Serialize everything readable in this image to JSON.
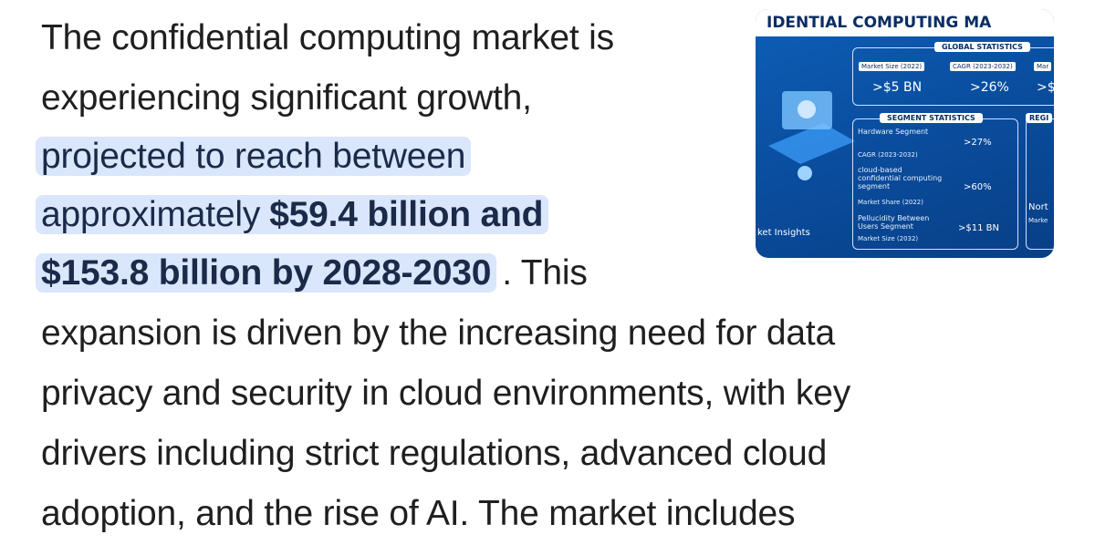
{
  "text": {
    "lines": [
      "The confidential computing market is",
      "experiencing significant growth,"
    ],
    "highlight_line": "projected to reach between",
    "highlight_plain": "approximately",
    "highlight_bold_1": "$59.4 billion and",
    "highlight_bold_2": "$153.8 billion by 2028-2030",
    "after_highlight": ". This",
    "rest": [
      "expansion is driven by the increasing need for data",
      "privacy and security in cloud environments, with key",
      "drivers including strict regulations, advanced cloud",
      "adoption, and the rise of AI. The market includes"
    ]
  },
  "image": {
    "title": "IDENTIAL COMPUTING MA",
    "global_heading": "GLOBAL STATISTICS",
    "global_stats": [
      {
        "label": "Market Size (2022)",
        "value": ">$5 BN"
      },
      {
        "label": "CAGR (2023-2032)",
        "value": ">26%"
      },
      {
        "label": "Mar",
        "value": ">$"
      }
    ],
    "segment_heading": "SEGMENT STATISTICS",
    "segments": [
      {
        "name": "Hardware Segment",
        "metric": "CAGR (2023-2032)",
        "value": ">27%"
      },
      {
        "name": "cloud-based confidential computing segment",
        "metric": "Market Share (2022)",
        "value": ">60%"
      },
      {
        "name": "Pellucidity Between Users Segment",
        "metric": "Market Size (2032)",
        "value": ">$11 BN"
      }
    ],
    "region_heading": "REGI",
    "region_name": "Nort",
    "region_sub": "Marke",
    "brand": "ket Insights"
  }
}
